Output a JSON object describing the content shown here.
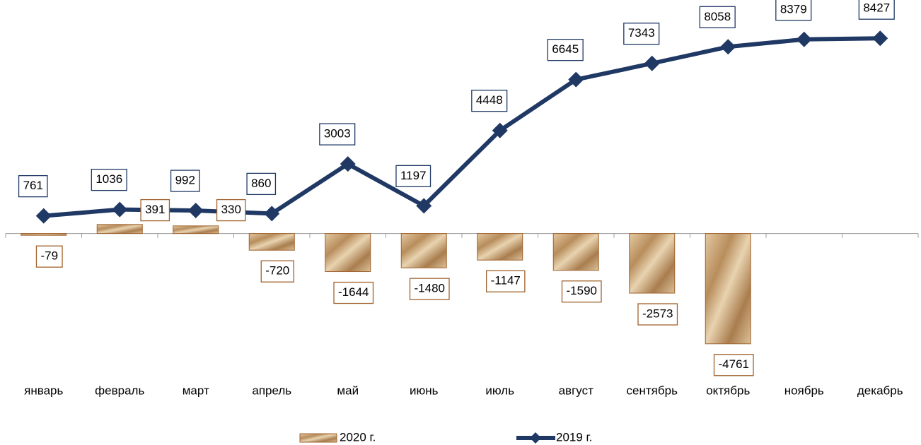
{
  "chart_data": {
    "type": "bar-line",
    "categories": [
      "январь",
      "февраль",
      "март",
      "апрель",
      "май",
      "июнь",
      "июль",
      "август",
      "сентябрь",
      "октябрь",
      "ноябрь",
      "декабрь"
    ],
    "series": [
      {
        "name": "2020 г.",
        "type": "bar",
        "color": "#c9a77c",
        "edge": "#a0622d",
        "values": [
          -79,
          391,
          330,
          -720,
          -1644,
          -1480,
          -1147,
          -1590,
          -2573,
          -4761,
          null,
          null
        ]
      },
      {
        "name": "2019 г.",
        "type": "line",
        "color": "#1f3864",
        "values": [
          761,
          1036,
          992,
          860,
          3003,
          1197,
          4448,
          6645,
          7343,
          8058,
          8379,
          8427
        ]
      }
    ],
    "ylim": [
      -5500,
      9500
    ]
  }
}
